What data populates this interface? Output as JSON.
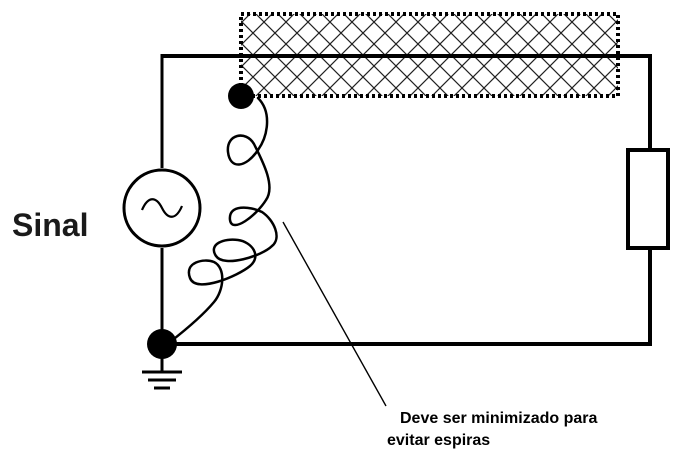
{
  "labels": {
    "signal": "Sinal",
    "note_line1": "Deve ser minimizado para",
    "note_line2": "evitar espiras"
  },
  "colors": {
    "wire": "#000000",
    "background": "#ffffff",
    "shield_hatch": "#222222"
  }
}
